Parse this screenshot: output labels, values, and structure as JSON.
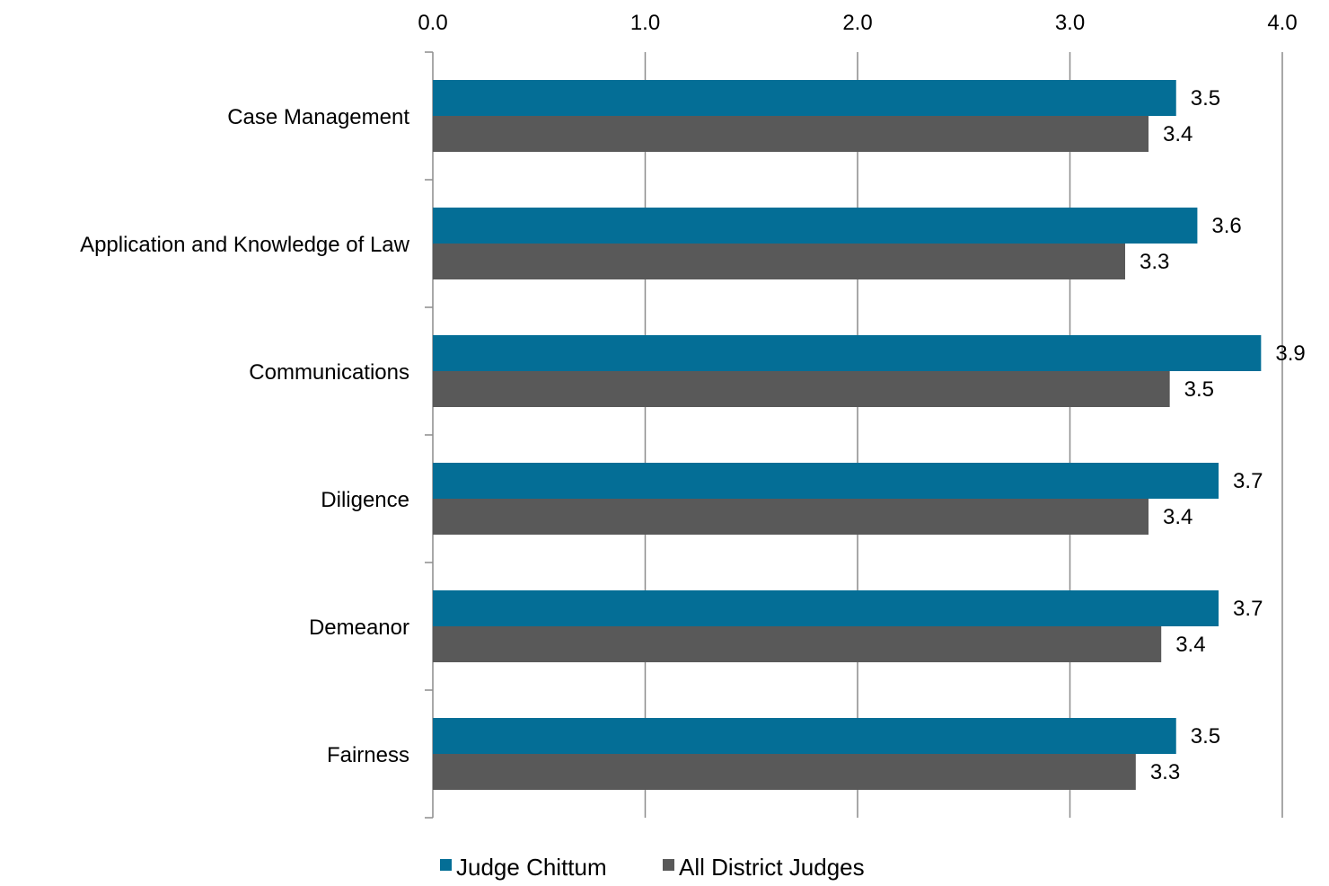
{
  "chart_data": {
    "type": "bar",
    "orientation": "horizontal",
    "title": "",
    "xlabel": "",
    "ylabel": "",
    "categories": [
      "Case Management",
      "Application and Knowledge of Law",
      "Communications",
      "Diligence",
      "Demeanor",
      "Fairness"
    ],
    "series": [
      {
        "name": "Judge Chittum",
        "color": "#046E96",
        "values": [
          3.5,
          3.6,
          3.9,
          3.7,
          3.7,
          3.5
        ],
        "labels": [
          "3.5",
          "3.6",
          "3.9",
          "3.7",
          "3.7",
          "3.5"
        ]
      },
      {
        "name": "All District Judges",
        "color": "#595959",
        "values": [
          3.37,
          3.26,
          3.47,
          3.37,
          3.43,
          3.31
        ],
        "labels": [
          "3.4",
          "3.3",
          "3.5",
          "3.4",
          "3.4",
          "3.3"
        ]
      }
    ],
    "xlim": [
      0,
      4
    ],
    "xticks": [
      0,
      1,
      2,
      3,
      4
    ],
    "xtick_labels": [
      "0.0",
      "1.0",
      "2.0",
      "3.0",
      "4.0"
    ],
    "x_axis_position": "top",
    "grid": true,
    "legend": {
      "position": "bottom",
      "entries": [
        "Judge Chittum",
        "All District Judges"
      ]
    }
  }
}
